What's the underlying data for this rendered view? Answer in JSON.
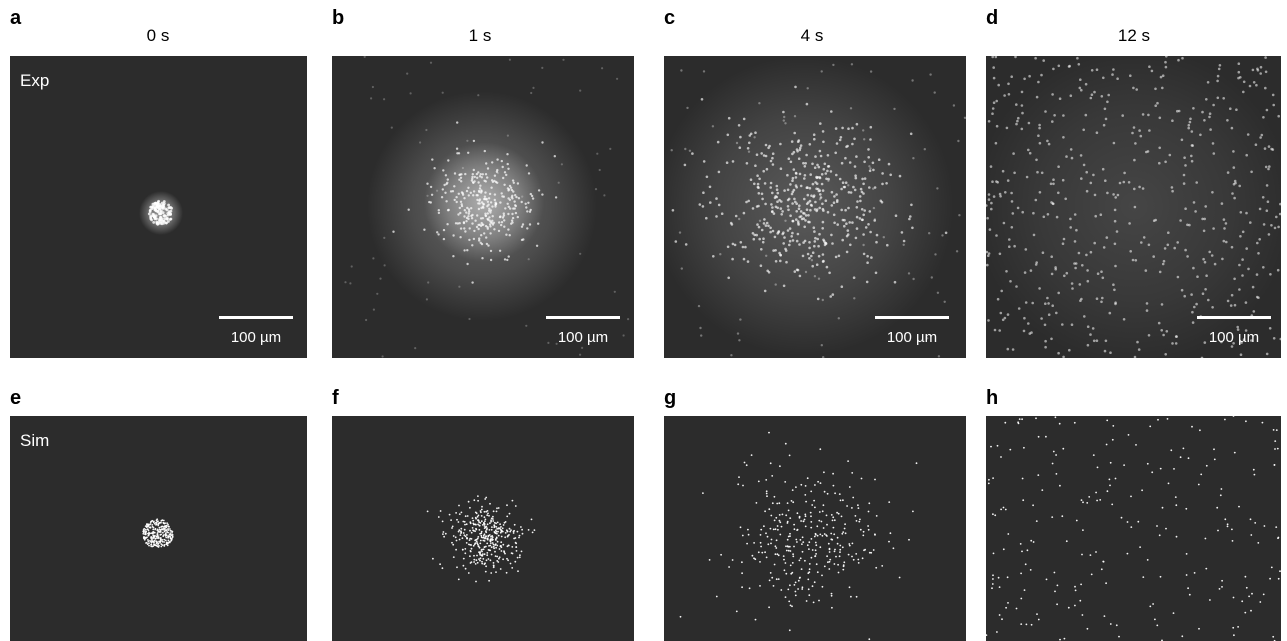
{
  "figure": {
    "top_row": {
      "row_label": "Exp",
      "panels": [
        {
          "letter": "a",
          "time": "0 s",
          "scale_bar": "100 µm"
        },
        {
          "letter": "b",
          "time": "1 s",
          "scale_bar": "100 µm"
        },
        {
          "letter": "c",
          "time": "4 s",
          "scale_bar": "100 µm"
        },
        {
          "letter": "d",
          "time": "12 s",
          "scale_bar": "100 µm"
        }
      ]
    },
    "bottom_row": {
      "row_label": "Sim",
      "panels": [
        {
          "letter": "e"
        },
        {
          "letter": "f"
        },
        {
          "letter": "g"
        },
        {
          "letter": "h"
        }
      ]
    }
  },
  "colors": {
    "panel_background": "#2c2c2c",
    "particles": "#ffffff",
    "text": "#000000"
  }
}
